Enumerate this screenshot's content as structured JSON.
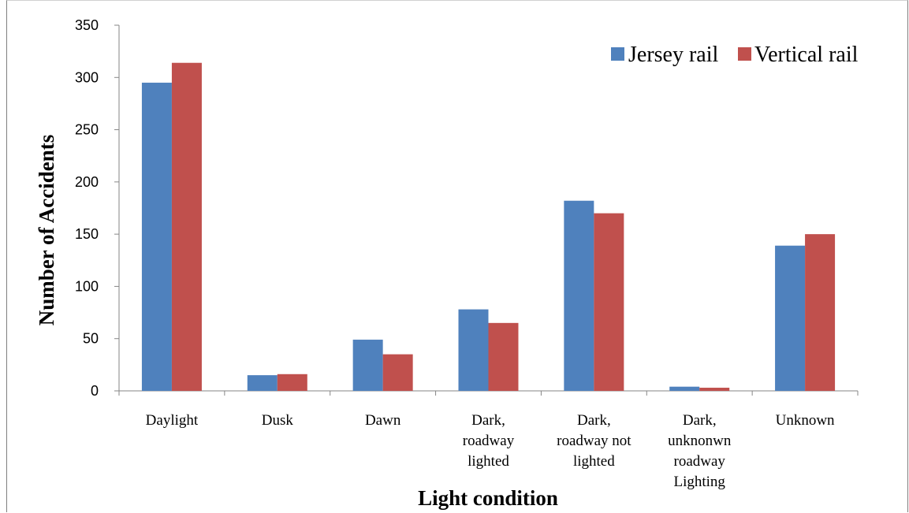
{
  "chart_data": {
    "type": "bar",
    "title": "",
    "xlabel": "Light condition",
    "ylabel": "Number of Accidents",
    "ylim": [
      0,
      350
    ],
    "yticks": [
      0,
      50,
      100,
      150,
      200,
      250,
      300,
      350
    ],
    "grid": false,
    "legend_position": "top-right",
    "categories": [
      [
        "Daylight"
      ],
      [
        "Dusk"
      ],
      [
        "Dawn"
      ],
      [
        "Dark,",
        "roadway",
        "lighted"
      ],
      [
        "Dark,",
        "roadway not",
        "lighted"
      ],
      [
        "Dark,",
        "unknonwn",
        "roadway",
        "Lighting"
      ],
      [
        "Unknown"
      ]
    ],
    "series": [
      {
        "name": "Jersey rail",
        "color": "#4f81bd",
        "values": [
          295,
          15,
          49,
          78,
          182,
          4,
          139
        ]
      },
      {
        "name": "Vertical rail",
        "color": "#c0504d",
        "values": [
          314,
          16,
          35,
          65,
          170,
          3,
          150
        ]
      }
    ]
  }
}
